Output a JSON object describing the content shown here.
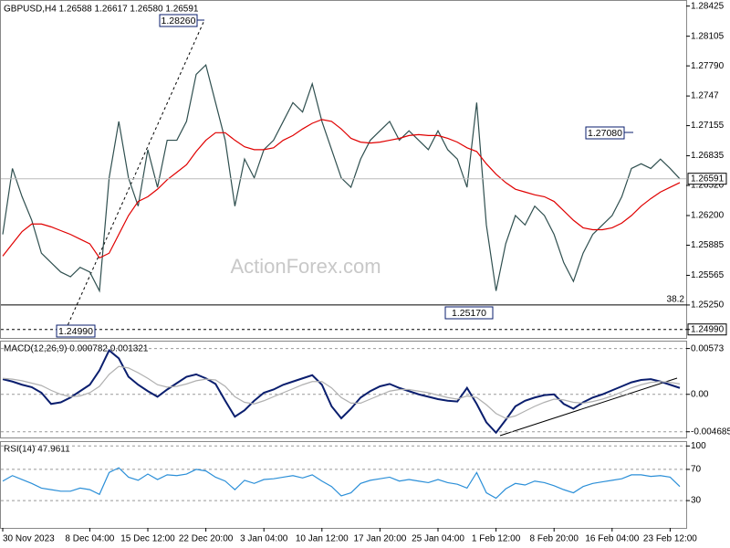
{
  "chart_data": [
    {
      "type": "line",
      "title": "GBPUSD,H4  1.26588 1.26617 1.26580 1.26591",
      "watermark": "ActionForex.com",
      "categories": [
        "30 Nov 2023",
        null,
        null,
        null,
        null,
        null,
        null,
        null,
        null,
        "8 Dec 04:00",
        null,
        null,
        null,
        null,
        null,
        "15 Dec 12:00",
        null,
        null,
        null,
        null,
        null,
        "22 Dec 20:00",
        null,
        null,
        null,
        null,
        null,
        "3 Jan 04:00",
        null,
        null,
        null,
        null,
        null,
        "10 Jan 12:00",
        null,
        null,
        null,
        null,
        null,
        "17 Jan 20:00",
        null,
        null,
        null,
        null,
        null,
        "25 Jan 04:00",
        null,
        null,
        null,
        null,
        null,
        "1 Feb 12:00",
        null,
        null,
        null,
        null,
        null,
        "8 Feb 20:00",
        null,
        null,
        null,
        null,
        null,
        "16 Feb 04:00",
        null,
        null,
        null,
        null,
        null,
        "23 Feb 12:00",
        null
      ],
      "series": [
        {
          "color": "#2f4f4f",
          "values": [
            1.26,
            1.267,
            1.264,
            1.2615,
            1.258,
            1.257,
            1.256,
            1.2555,
            1.2565,
            1.256,
            1.254,
            1.266,
            1.272,
            1.266,
            1.263,
            1.269,
            1.265,
            1.27,
            1.27,
            1.272,
            1.277,
            1.278,
            1.274,
            1.27,
            1.263,
            1.268,
            1.266,
            1.269,
            1.27,
            1.272,
            1.274,
            1.273,
            1.276,
            1.272,
            1.269,
            1.266,
            1.265,
            1.268,
            1.27,
            1.271,
            1.272,
            1.27,
            1.271,
            1.27,
            1.269,
            1.271,
            1.269,
            1.268,
            1.265,
            1.274,
            1.261,
            1.254,
            1.259,
            1.262,
            1.261,
            1.263,
            1.262,
            1.26,
            1.257,
            1.255,
            1.258,
            1.26,
            1.261,
            1.262,
            1.264,
            1.267,
            1.2675,
            1.267,
            1.268,
            1.267,
            1.2659
          ]
        },
        {
          "color": "#e00000",
          "values": [
            1.2577,
            1.259,
            1.2603,
            1.2611,
            1.2611,
            1.2608,
            1.2604,
            1.26,
            1.2595,
            1.259,
            1.2575,
            1.258,
            1.26,
            1.262,
            1.2635,
            1.264,
            1.2648,
            1.2658,
            1.2666,
            1.2674,
            1.2688,
            1.27,
            1.2708,
            1.2708,
            1.27,
            1.2693,
            1.269,
            1.269,
            1.2692,
            1.27,
            1.2705,
            1.2712,
            1.2718,
            1.2722,
            1.272,
            1.2712,
            1.2702,
            1.2698,
            1.2697,
            1.2698,
            1.27,
            1.2702,
            1.2705,
            1.2706,
            1.2705,
            1.2705,
            1.2702,
            1.2698,
            1.2692,
            1.2688,
            1.2675,
            1.2664,
            1.2655,
            1.2648,
            1.2645,
            1.2642,
            1.264,
            1.2635,
            1.2625,
            1.2615,
            1.2607,
            1.2605,
            1.2605,
            1.2607,
            1.2612,
            1.262,
            1.263,
            1.2638,
            1.2645,
            1.265,
            1.2655
          ]
        }
      ],
      "ylim": [
        1.249,
        1.2848
      ],
      "yticks": [
        1.28425,
        1.28105,
        {
          "value": 1.2779,
          "label": "1.27790"
        },
        1.2747,
        1.27155,
        1.26835,
        {
          "value": 1.2652,
          "label": "1.26520"
        },
        {
          "value": 1.262,
          "label": "1.26200"
        },
        1.25885,
        1.25565,
        {
          "value": 1.2525,
          "label": "1.25250"
        },
        {
          "value": 1.2499,
          "label": "1.24990"
        }
      ],
      "last_price": 1.26591,
      "fib_level": {
        "value": 1.2525,
        "label": "38.2"
      },
      "annotations": [
        "1.28260",
        "1.27080",
        "1.25170",
        "1.24990"
      ]
    },
    {
      "type": "line",
      "title": "MACD(12,26,9) 0.000782 0.001321",
      "series": [
        {
          "color": "#0a1e6e",
          "values": [
            0.0019,
            0.0016,
            0.0012,
            0.0009,
            0.0002,
            -0.0012,
            -0.001,
            -0.0004,
            0.0004,
            0.0012,
            0.003,
            0.0055,
            0.0045,
            0.0022,
            0.0012,
            0.0004,
            -0.0003,
            0.0006,
            0.0014,
            0.0022,
            0.0025,
            0.002,
            0.0013,
            -0.0008,
            -0.0028,
            -0.002,
            -0.0008,
            0.0002,
            0.0006,
            0.0012,
            0.0016,
            0.002,
            0.0024,
            0.0012,
            -0.0015,
            -0.003,
            -0.0018,
            -0.0004,
            0.0004,
            0.001,
            0.0013,
            0.0008,
            0.0004,
            0.0,
            -0.0003,
            -0.0006,
            -0.0008,
            -0.0009,
            0.0008,
            -0.0012,
            -0.0035,
            -0.0048,
            -0.0032,
            -0.0015,
            -0.0008,
            -0.0004,
            -0.0001,
            0.0,
            -0.0012,
            -0.0018,
            -0.001,
            -0.0004,
            0.0,
            0.0005,
            0.001,
            0.0015,
            0.0018,
            0.0019,
            0.0016,
            0.0012,
            0.0008
          ]
        },
        {
          "color": "#b0b0b0",
          "values": [
            0.002,
            0.0019,
            0.0017,
            0.0014,
            0.0011,
            0.0005,
            0.0,
            -0.0003,
            -0.0002,
            0.0002,
            0.001,
            0.0025,
            0.0035,
            0.0033,
            0.0027,
            0.002,
            0.0012,
            0.0009,
            0.001,
            0.0013,
            0.0017,
            0.0019,
            0.0018,
            0.001,
            -0.0003,
            -0.001,
            -0.0012,
            -0.0008,
            -0.0003,
            0.0002,
            0.0007,
            0.0012,
            0.0016,
            0.0016,
            0.0008,
            -0.0004,
            -0.0011,
            -0.0011,
            -0.0006,
            -0.0001,
            0.0004,
            0.0006,
            0.0006,
            0.0004,
            0.0002,
            -0.0001,
            -0.0004,
            -0.0006,
            -0.0002,
            -0.0004,
            -0.0013,
            -0.0024,
            -0.003,
            -0.0027,
            -0.0021,
            -0.0015,
            -0.001,
            -0.0006,
            -0.0007,
            -0.001,
            -0.0011,
            -0.0009,
            -0.0006,
            -0.0002,
            0.0003,
            0.0008,
            0.0012,
            0.0015,
            0.0016,
            0.0015,
            0.0013
          ]
        }
      ],
      "ylim": [
        -0.0054,
        0.0066
      ],
      "yticks": [
        0.00573,
        {
          "value": 0,
          "label": "0.00"
        },
        -0.004685
      ]
    },
    {
      "type": "line",
      "title": "RSI(14) 47.9611",
      "series": [
        {
          "color": "#2b8fd8",
          "values": [
            55,
            62,
            57,
            52,
            46,
            44,
            42,
            42,
            46,
            44,
            38,
            66,
            72,
            60,
            56,
            64,
            57,
            63,
            62,
            64,
            70,
            68,
            60,
            55,
            44,
            56,
            52,
            57,
            58,
            60,
            62,
            59,
            63,
            55,
            48,
            36,
            40,
            52,
            56,
            58,
            60,
            55,
            57,
            55,
            53,
            57,
            53,
            51,
            46,
            66,
            40,
            33,
            45,
            52,
            50,
            55,
            53,
            49,
            44,
            40,
            48,
            52,
            54,
            56,
            58,
            63,
            63,
            61,
            62,
            60,
            48
          ]
        }
      ],
      "ylim": [
        -5,
        105
      ],
      "yticks": [
        100,
        70,
        30
      ]
    }
  ]
}
